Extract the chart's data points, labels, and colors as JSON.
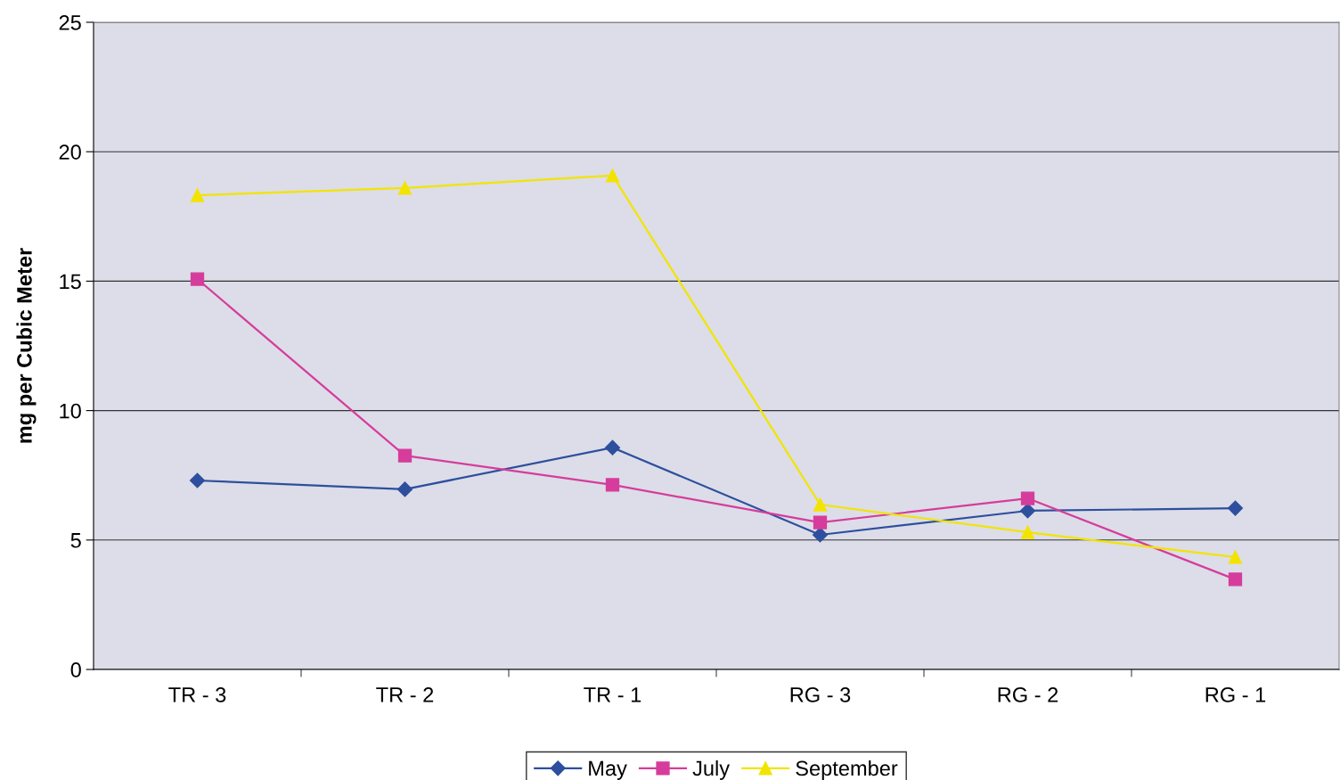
{
  "chart_data": {
    "type": "line",
    "ylabel": "mg per Cubic Meter",
    "categories": [
      "TR - 3",
      "TR - 2",
      "TR - 1",
      "RG - 3",
      "RG - 2",
      "RG - 1"
    ],
    "series": [
      {
        "name": "May",
        "color": "#2e4f9e",
        "marker": "diamond",
        "values": [
          7.3,
          6.96,
          8.57,
          5.2,
          6.13,
          6.23
        ]
      },
      {
        "name": "July",
        "color": "#d63c9c",
        "marker": "square",
        "values": [
          15.08,
          8.26,
          7.13,
          5.68,
          6.61,
          3.48
        ]
      },
      {
        "name": "September",
        "color": "#f2e400",
        "marker": "triangle",
        "values": [
          18.32,
          18.6,
          19.08,
          6.37,
          5.3,
          4.34
        ]
      }
    ],
    "ylim": [
      0,
      25
    ],
    "yticks": [
      0,
      5,
      10,
      15,
      20,
      25
    ],
    "grid": "y",
    "legend": "bottom",
    "line_style": "solid"
  }
}
